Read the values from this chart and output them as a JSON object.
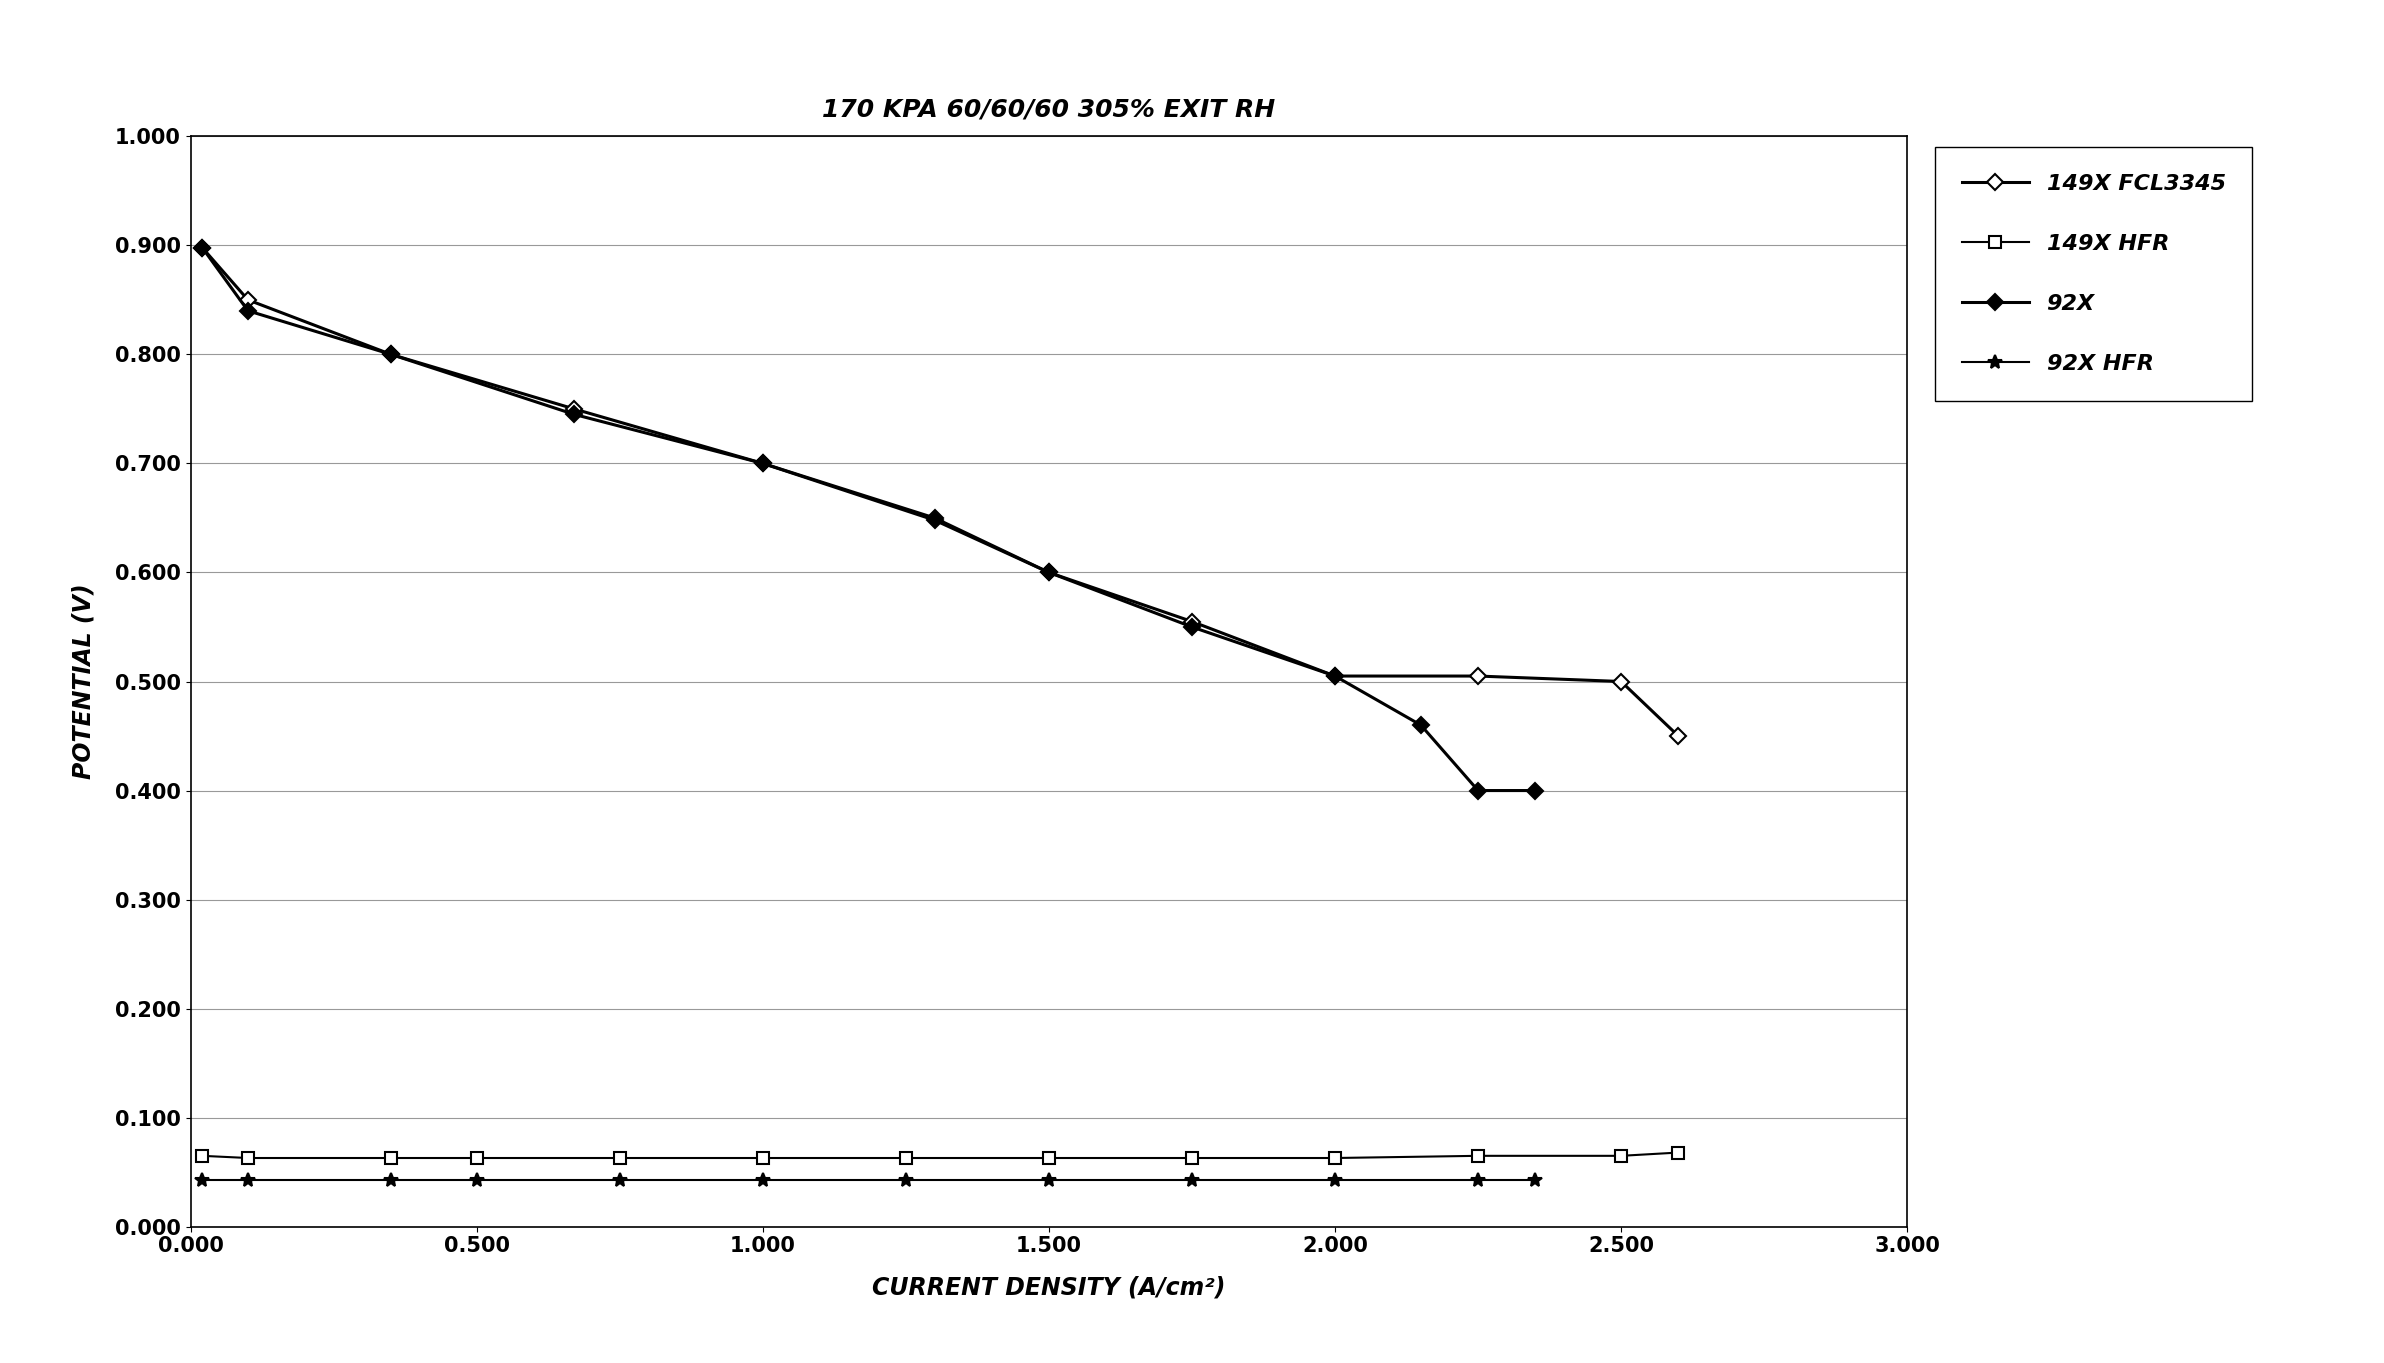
{
  "title": "170 KPA 60/60/60 305% EXIT RH",
  "xlabel": "CURRENT DENSITY (A/cm²)",
  "ylabel": "POTENTIAL (V)",
  "xlim": [
    0.0,
    3.0
  ],
  "ylim": [
    0.0,
    1.0
  ],
  "xticks": [
    0.0,
    0.5,
    1.0,
    1.5,
    2.0,
    2.5,
    3.0
  ],
  "yticks": [
    0.0,
    0.1,
    0.2,
    0.3,
    0.4,
    0.5,
    0.6,
    0.7,
    0.8,
    0.9,
    1.0
  ],
  "series": [
    {
      "label": "149X FCL3345",
      "x": [
        0.02,
        0.1,
        0.35,
        0.67,
        1.0,
        1.3,
        1.5,
        1.75,
        2.0,
        2.25,
        2.5,
        2.6
      ],
      "y": [
        0.898,
        0.85,
        0.8,
        0.75,
        0.7,
        0.65,
        0.6,
        0.555,
        0.505,
        0.505,
        0.5,
        0.45
      ],
      "color": "#000000",
      "marker": "D",
      "marker_fill": "white",
      "linestyle": "-",
      "linewidth": 2.2,
      "markersize": 8
    },
    {
      "label": "149X HFR",
      "x": [
        0.02,
        0.1,
        0.35,
        0.5,
        0.75,
        1.0,
        1.25,
        1.5,
        1.75,
        2.0,
        2.25,
        2.5,
        2.6
      ],
      "y": [
        0.065,
        0.063,
        0.063,
        0.063,
        0.063,
        0.063,
        0.063,
        0.063,
        0.063,
        0.063,
        0.065,
        0.065,
        0.068
      ],
      "color": "#000000",
      "marker": "s",
      "marker_fill": "white",
      "linestyle": "-",
      "linewidth": 1.5,
      "markersize": 8
    },
    {
      "label": "92X",
      "x": [
        0.02,
        0.1,
        0.35,
        0.67,
        1.0,
        1.3,
        1.5,
        1.75,
        2.0,
        2.15,
        2.25,
        2.35
      ],
      "y": [
        0.898,
        0.84,
        0.8,
        0.745,
        0.7,
        0.648,
        0.6,
        0.55,
        0.505,
        0.46,
        0.4,
        0.4
      ],
      "color": "#000000",
      "marker": "D",
      "marker_fill": "black",
      "linestyle": "-",
      "linewidth": 2.2,
      "markersize": 8
    },
    {
      "label": "92X HFR",
      "x": [
        0.02,
        0.1,
        0.35,
        0.5,
        0.75,
        1.0,
        1.25,
        1.5,
        1.75,
        2.0,
        2.25,
        2.35
      ],
      "y": [
        0.043,
        0.043,
        0.043,
        0.043,
        0.043,
        0.043,
        0.043,
        0.043,
        0.043,
        0.043,
        0.043,
        0.043
      ],
      "color": "#000000",
      "marker": "*",
      "marker_fill": "black",
      "linestyle": "-",
      "linewidth": 1.5,
      "markersize": 10
    }
  ],
  "background_color": "#ffffff",
  "grid_color": "#999999",
  "title_fontsize": 18,
  "axis_label_fontsize": 17,
  "tick_fontsize": 15,
  "legend_fontsize": 16
}
